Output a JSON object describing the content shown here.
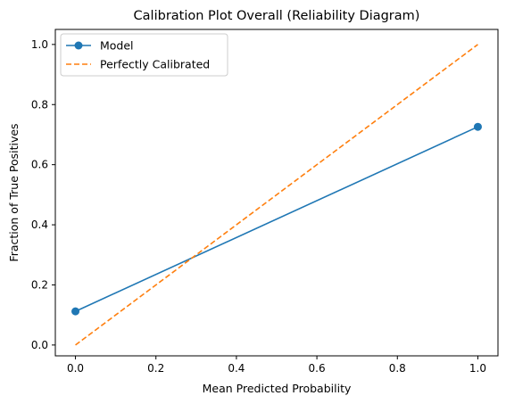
{
  "chart_data": {
    "type": "line",
    "title": "Calibration Plot Overall (Reliability Diagram)",
    "xlabel": "Mean Predicted Probability",
    "ylabel": "Fraction of True Positives",
    "xlim": [
      -0.05,
      1.05
    ],
    "ylim": [
      -0.036,
      1.05
    ],
    "xticks": [
      "0.0",
      "0.2",
      "0.4",
      "0.6",
      "0.8",
      "1.0"
    ],
    "yticks": [
      "0.0",
      "0.2",
      "0.4",
      "0.6",
      "0.8",
      "1.0"
    ],
    "grid": false,
    "legend_position": "top-left",
    "series": [
      {
        "name": "Model",
        "style": "solid",
        "marker": "circle",
        "color": "#1f77b4",
        "x": [
          0.0,
          1.0
        ],
        "y": [
          0.112,
          0.726
        ]
      },
      {
        "name": "Perfectly Calibrated",
        "style": "dashed",
        "marker": "none",
        "color": "#ff7f0e",
        "x": [
          0.0,
          1.0
        ],
        "y": [
          0.0,
          1.0
        ]
      }
    ]
  }
}
